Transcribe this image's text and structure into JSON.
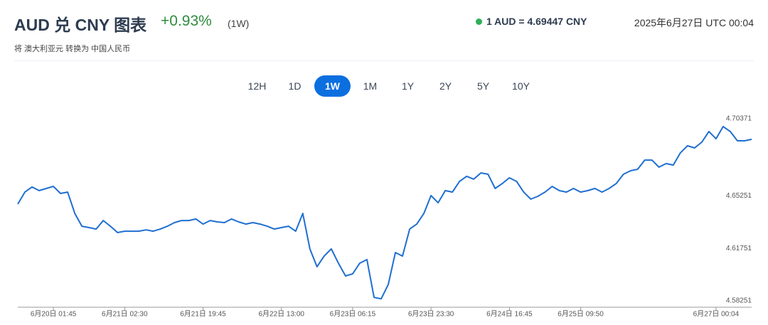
{
  "header": {
    "title": "AUD 兑 CNY 图表",
    "change": "+0.93%",
    "period": "(1W)",
    "rate": "1 AUD = 4.69447 CNY",
    "timestamp": "2025年6月27日 UTC 00:04",
    "subtitle": "将 澳大利亚元 转换为 中国人民币"
  },
  "range_buttons": {
    "options": [
      "12H",
      "1D",
      "1W",
      "1M",
      "1Y",
      "2Y",
      "5Y",
      "10Y"
    ],
    "active": "1W"
  },
  "chart_data": {
    "type": "line",
    "color": "#1f6fd1",
    "x": [
      null,
      null,
      null,
      null,
      null,
      "6月20日 01:45",
      null,
      null,
      null,
      null,
      null,
      null,
      null,
      null,
      null,
      "6月21日 02:30",
      null,
      null,
      null,
      null,
      null,
      null,
      null,
      null,
      null,
      null,
      "6月21日 19:45",
      null,
      null,
      null,
      null,
      null,
      null,
      null,
      null,
      null,
      null,
      "6月22日 13:00",
      null,
      null,
      null,
      null,
      null,
      null,
      null,
      null,
      null,
      "6月23日 06:15",
      null,
      null,
      null,
      null,
      null,
      null,
      null,
      null,
      null,
      null,
      "6月23日 23:30",
      null,
      null,
      null,
      null,
      null,
      null,
      null,
      null,
      null,
      null,
      "6月24日 16:45",
      null,
      null,
      null,
      null,
      null,
      null,
      null,
      null,
      null,
      "6月25日 09:50",
      null,
      null,
      null,
      null,
      null,
      null,
      null,
      null,
      null,
      null,
      null,
      null,
      null,
      null,
      null,
      null,
      null,
      null,
      "6月27日 00:04",
      null,
      null,
      null,
      null,
      null
    ],
    "values": [
      4.6469,
      4.6549,
      4.6583,
      4.6559,
      4.6573,
      4.6587,
      4.654,
      4.6549,
      4.6407,
      4.6322,
      4.6313,
      4.6303,
      4.636,
      4.6322,
      4.628,
      4.6289,
      4.6289,
      4.6289,
      4.6298,
      4.6289,
      4.6303,
      4.6322,
      4.6346,
      4.636,
      4.636,
      4.637,
      4.6336,
      4.636,
      4.6351,
      4.6346,
      4.637,
      4.6351,
      4.6336,
      4.6346,
      4.6336,
      4.6322,
      4.6303,
      4.6313,
      4.6322,
      4.6289,
      4.6407,
      4.6171,
      4.6052,
      4.6123,
      4.6171,
      4.6076,
      4.5991,
      4.6005,
      4.6076,
      4.61,
      4.5849,
      4.5839,
      4.5934,
      4.6147,
      4.6123,
      4.6303,
      4.6336,
      4.6407,
      4.6526,
      4.6478,
      4.6559,
      4.6549,
      4.662,
      4.6654,
      4.6635,
      4.6677,
      4.6668,
      4.6573,
      4.6606,
      4.6644,
      4.662,
      4.6549,
      4.6502,
      4.6521,
      4.6549,
      4.6587,
      4.6559,
      4.6549,
      4.6573,
      4.6549,
      4.6559,
      4.6573,
      4.6549,
      4.6573,
      4.6606,
      4.6668,
      4.6691,
      4.6701,
      4.6762,
      4.6762,
      4.6715,
      4.6739,
      4.6729,
      4.681,
      4.6857,
      4.6843,
      4.6881,
      4.6952,
      4.6904,
      4.6985,
      4.6952,
      4.689,
      4.689,
      4.69
    ],
    "ylim": [
      4.5783,
      4.707
    ],
    "yticks": [
      4.58251,
      4.61751,
      4.65251,
      4.70371
    ]
  }
}
